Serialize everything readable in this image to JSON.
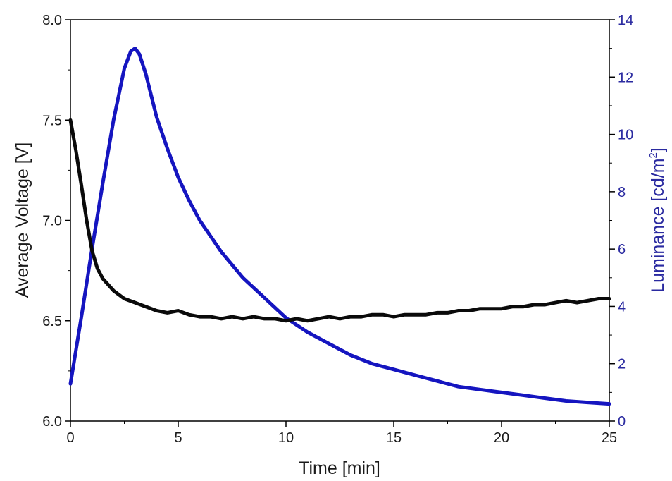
{
  "chart_data": {
    "type": "line",
    "xlabel": "Time [min]",
    "ylabel_left": "Average Voltage [V]",
    "ylabel_right_prefix": "Luminance [cd/m",
    "ylabel_right_sup": "2",
    "ylabel_right_suffix": "]",
    "xlim": [
      0,
      25
    ],
    "ylim_left": [
      6.0,
      8.0
    ],
    "ylim_right": [
      0,
      14
    ],
    "x_ticks": [
      0,
      5,
      10,
      15,
      20,
      25
    ],
    "x_tick_labels": [
      "0",
      "5",
      "10",
      "15",
      "20",
      "25"
    ],
    "y_left_ticks": [
      6.0,
      6.5,
      7.0,
      7.5,
      8.0
    ],
    "y_left_tick_labels": [
      "6.0",
      "6.5",
      "7.0",
      "7.5",
      "8.0"
    ],
    "y_right_ticks": [
      0,
      2,
      4,
      6,
      8,
      10,
      12,
      14
    ],
    "y_right_tick_labels": [
      "0",
      "2",
      "4",
      "6",
      "8",
      "10",
      "12",
      "14"
    ],
    "grid": false,
    "colors": {
      "voltage": "#0a0a0a",
      "luminance": "#1515c0",
      "right_axis": "#2a2aa0"
    },
    "series": [
      {
        "axis": "left",
        "x": [
          0,
          0.25,
          0.5,
          0.75,
          1,
          1.25,
          1.5,
          2,
          2.5,
          3,
          3.5,
          4,
          4.5,
          5,
          5.5,
          6,
          6.5,
          7,
          7.5,
          8,
          8.5,
          9,
          9.5,
          10,
          10.5,
          11,
          11.5,
          12,
          12.5,
          13,
          13.5,
          14,
          14.5,
          15,
          15.5,
          16,
          16.5,
          17,
          17.5,
          18,
          18.5,
          19,
          19.5,
          20,
          20.5,
          21,
          21.5,
          22,
          22.5,
          23,
          23.5,
          24,
          24.5,
          25
        ],
        "values": [
          7.5,
          7.35,
          7.18,
          7.0,
          6.85,
          6.76,
          6.71,
          6.65,
          6.61,
          6.59,
          6.57,
          6.55,
          6.54,
          6.55,
          6.53,
          6.52,
          6.52,
          6.51,
          6.52,
          6.51,
          6.52,
          6.51,
          6.51,
          6.5,
          6.51,
          6.5,
          6.51,
          6.52,
          6.51,
          6.52,
          6.52,
          6.53,
          6.53,
          6.52,
          6.53,
          6.53,
          6.53,
          6.54,
          6.54,
          6.55,
          6.55,
          6.56,
          6.56,
          6.56,
          6.57,
          6.57,
          6.58,
          6.58,
          6.59,
          6.6,
          6.59,
          6.6,
          6.61,
          6.61
        ]
      },
      {
        "axis": "right",
        "x": [
          0,
          0.5,
          1,
          1.5,
          2,
          2.5,
          2.8,
          3,
          3.2,
          3.5,
          4,
          4.5,
          5,
          5.5,
          6,
          7,
          8,
          9,
          10,
          11,
          12,
          13,
          14,
          15,
          16,
          17,
          18,
          19,
          20,
          21,
          22,
          23,
          24,
          25
        ],
        "values": [
          1.3,
          3.6,
          6.0,
          8.3,
          10.5,
          12.3,
          12.9,
          13.0,
          12.8,
          12.1,
          10.6,
          9.5,
          8.5,
          7.7,
          7.0,
          5.9,
          5.0,
          4.3,
          3.6,
          3.1,
          2.7,
          2.3,
          2.0,
          1.8,
          1.6,
          1.4,
          1.2,
          1.1,
          1.0,
          0.9,
          0.8,
          0.7,
          0.65,
          0.6
        ]
      }
    ]
  }
}
